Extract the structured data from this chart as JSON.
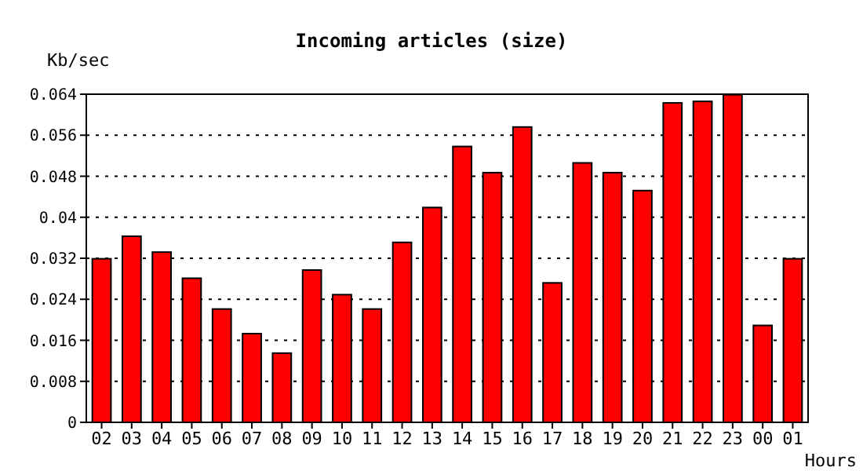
{
  "chart_data": {
    "type": "bar",
    "title": "Incoming articles (size)",
    "xlabel": "Hours",
    "ylabel": "Kb/sec",
    "categories": [
      "02",
      "03",
      "04",
      "05",
      "06",
      "07",
      "08",
      "09",
      "10",
      "11",
      "12",
      "13",
      "14",
      "15",
      "16",
      "17",
      "18",
      "19",
      "20",
      "21",
      "22",
      "23",
      "00",
      "01"
    ],
    "values": [
      0.0319,
      0.0363,
      0.0332,
      0.0281,
      0.0221,
      0.0173,
      0.0135,
      0.0297,
      0.0249,
      0.0221,
      0.0351,
      0.0419,
      0.0538,
      0.0487,
      0.0576,
      0.0272,
      0.0506,
      0.0487,
      0.0452,
      0.0623,
      0.0626,
      0.0639,
      0.0189,
      0.0319
    ],
    "color": "#ff0000",
    "ylim": [
      0,
      0.064
    ],
    "yticks": [
      0,
      0.008,
      0.016,
      0.024,
      0.032,
      0.04,
      0.048,
      0.056,
      0.064
    ],
    "grid": "y"
  }
}
